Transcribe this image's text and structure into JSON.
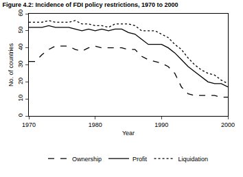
{
  "chart_data": {
    "type": "line",
    "title": "Figure 4.2: Incidence of FDI policy restrictions, 1970 to 2000",
    "x_label": "Year",
    "y_label": "No. of countries",
    "x": [
      1970,
      1971,
      1972,
      1973,
      1974,
      1975,
      1976,
      1977,
      1978,
      1979,
      1980,
      1981,
      1982,
      1983,
      1984,
      1985,
      1986,
      1987,
      1988,
      1989,
      1990,
      1991,
      1992,
      1993,
      1994,
      1995,
      1996,
      1997,
      1998,
      1999,
      2000
    ],
    "series": [
      {
        "name": "Ownership",
        "color": "#000000",
        "line_style": "dash",
        "values": [
          32,
          32,
          36,
          39,
          41,
          41,
          41,
          39,
          38,
          40,
          41,
          40,
          40,
          40,
          40,
          39,
          39,
          35,
          33,
          32,
          31,
          29,
          25,
          17,
          13,
          12,
          12,
          12,
          12,
          11,
          11
        ]
      },
      {
        "name": "Profit",
        "color": "#000000",
        "line_style": "solid",
        "values": [
          52,
          52,
          52,
          53,
          52,
          52,
          52,
          51,
          50,
          51,
          50,
          51,
          50,
          51,
          51,
          49,
          48,
          45,
          42,
          42,
          42,
          40,
          37,
          33,
          29,
          26,
          23,
          20,
          19,
          19,
          17
        ]
      },
      {
        "name": "Liquidation",
        "color": "#000000",
        "line_style": "dot",
        "values": [
          55,
          55,
          55,
          56,
          55,
          55,
          55,
          56,
          54,
          54,
          53,
          53,
          52,
          54,
          54,
          54,
          53,
          50,
          50,
          50,
          48,
          46,
          42,
          39,
          34,
          30,
          27,
          25,
          24,
          21,
          19
        ]
      }
    ],
    "xlim": [
      1970,
      2000
    ],
    "xticks": [
      1970,
      1980,
      1990,
      2000
    ],
    "ylim": [
      0,
      60
    ],
    "yticks": [
      0,
      10,
      20,
      30,
      40,
      50,
      60
    ],
    "grid": false,
    "legend": "bottom"
  }
}
